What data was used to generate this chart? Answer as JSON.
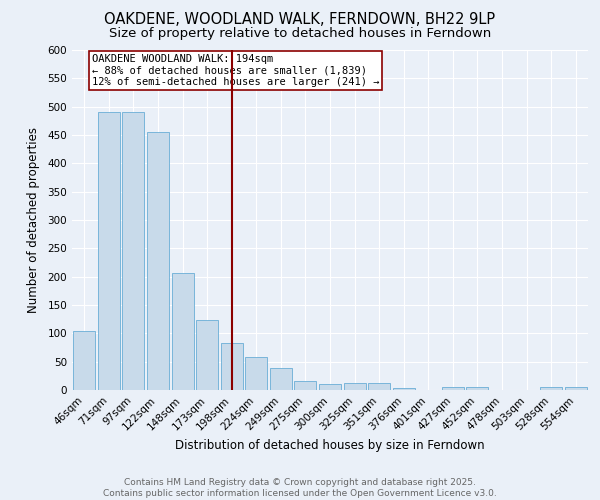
{
  "title1": "OAKDENE, WOODLAND WALK, FERNDOWN, BH22 9LP",
  "title2": "Size of property relative to detached houses in Ferndown",
  "xlabel": "Distribution of detached houses by size in Ferndown",
  "ylabel": "Number of detached properties",
  "categories": [
    "46sqm",
    "71sqm",
    "97sqm",
    "122sqm",
    "148sqm",
    "173sqm",
    "198sqm",
    "224sqm",
    "249sqm",
    "275sqm",
    "300sqm",
    "325sqm",
    "351sqm",
    "376sqm",
    "401sqm",
    "427sqm",
    "452sqm",
    "478sqm",
    "503sqm",
    "528sqm",
    "554sqm"
  ],
  "values": [
    105,
    490,
    490,
    455,
    207,
    124,
    83,
    58,
    38,
    16,
    10,
    12,
    12,
    3,
    0,
    5,
    5,
    0,
    0,
    6,
    6
  ],
  "bar_color": "#c8daea",
  "bar_edge_color": "#6aaed6",
  "vline_x_index": 6,
  "vline_color": "#8b0000",
  "annotation_text": "OAKDENE WOODLAND WALK: 194sqm\n← 88% of detached houses are smaller (1,839)\n12% of semi-detached houses are larger (241) →",
  "annotation_box_color": "white",
  "annotation_box_edge": "#8b0000",
  "ylim": [
    0,
    600
  ],
  "yticks": [
    0,
    50,
    100,
    150,
    200,
    250,
    300,
    350,
    400,
    450,
    500,
    550,
    600
  ],
  "background_color": "#eaf0f8",
  "footer_text": "Contains HM Land Registry data © Crown copyright and database right 2025.\nContains public sector information licensed under the Open Government Licence v3.0.",
  "title1_fontsize": 10.5,
  "title2_fontsize": 9.5,
  "xlabel_fontsize": 8.5,
  "ylabel_fontsize": 8.5,
  "tick_fontsize": 7.5,
  "annotation_fontsize": 7.5,
  "footer_fontsize": 6.5
}
